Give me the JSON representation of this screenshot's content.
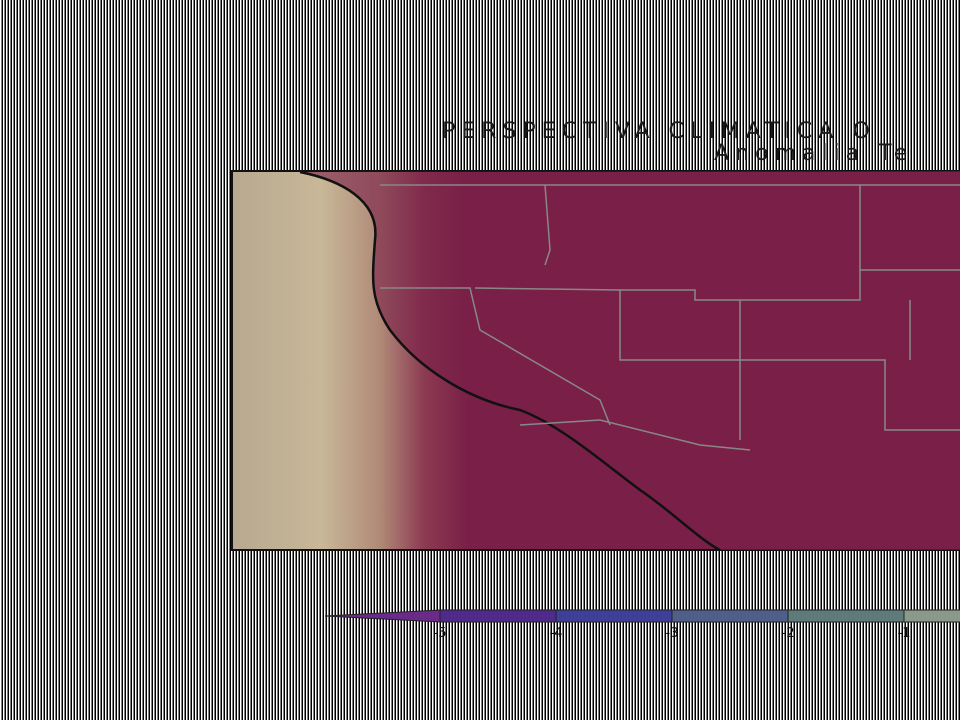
{
  "header": {
    "title": "PERSPECTIVA  CLIMATICA  O",
    "subtitle": "Anomalia  Te"
  },
  "colorbar": {
    "labels": [
      "-5",
      "-4",
      "-3",
      "-2",
      "-1"
    ],
    "colors": [
      "#6a2a8a",
      "#4f2a8a",
      "#3f3f9a",
      "#4f5f8a",
      "#5f7a7a",
      "#8a9a8a"
    ]
  }
}
